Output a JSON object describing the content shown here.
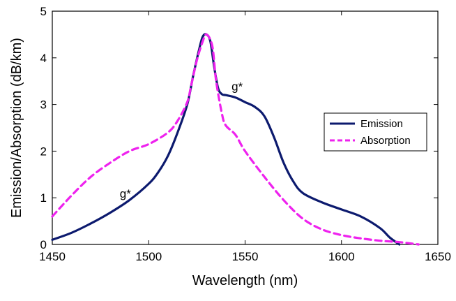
{
  "chart_data": {
    "type": "line",
    "xlabel": "Wavelength (nm)",
    "ylabel": "Emission/Absorption (dB/km)",
    "xlim": [
      1450,
      1650
    ],
    "ylim": [
      0,
      5
    ],
    "xticks": [
      1450,
      1500,
      1550,
      1600,
      1650
    ],
    "yticks": [
      0,
      1,
      2,
      3,
      4,
      5
    ],
    "grid": false,
    "legend_position": "right",
    "series": [
      {
        "name": "Emission",
        "color": "#0c1a6e",
        "dash": "solid",
        "x": [
          1450,
          1460,
          1470,
          1480,
          1490,
          1500,
          1505,
          1510,
          1515,
          1520,
          1523,
          1526,
          1528,
          1530,
          1532,
          1534,
          1536,
          1538,
          1540,
          1545,
          1550,
          1555,
          1560,
          1565,
          1570,
          1575,
          1580,
          1590,
          1600,
          1610,
          1620,
          1625,
          1630
        ],
        "y": [
          0.1,
          0.25,
          0.45,
          0.68,
          0.95,
          1.3,
          1.55,
          1.9,
          2.4,
          3.0,
          3.6,
          4.15,
          4.45,
          4.5,
          4.35,
          3.8,
          3.35,
          3.22,
          3.2,
          3.15,
          3.05,
          2.95,
          2.75,
          2.3,
          1.75,
          1.35,
          1.1,
          0.9,
          0.75,
          0.6,
          0.35,
          0.15,
          0.0
        ]
      },
      {
        "name": "Absorption",
        "color": "#ee22ee",
        "dash": "dashed",
        "x": [
          1450,
          1460,
          1470,
          1480,
          1490,
          1500,
          1510,
          1515,
          1520,
          1522,
          1525,
          1528,
          1530,
          1533,
          1535,
          1538,
          1540,
          1545,
          1550,
          1560,
          1570,
          1580,
          1590,
          1600,
          1610,
          1620,
          1630,
          1640
        ],
        "y": [
          0.6,
          1.05,
          1.45,
          1.75,
          2.0,
          2.15,
          2.4,
          2.65,
          3.05,
          3.4,
          3.95,
          4.35,
          4.5,
          4.25,
          3.5,
          2.8,
          2.55,
          2.35,
          2.0,
          1.45,
          0.95,
          0.55,
          0.32,
          0.2,
          0.13,
          0.08,
          0.05,
          0.0
        ]
      }
    ],
    "annotations": [
      {
        "text": "g*",
        "x": 1543,
        "y": 3.3
      },
      {
        "text": "g*",
        "x": 1485,
        "y": 1.0
      }
    ]
  }
}
